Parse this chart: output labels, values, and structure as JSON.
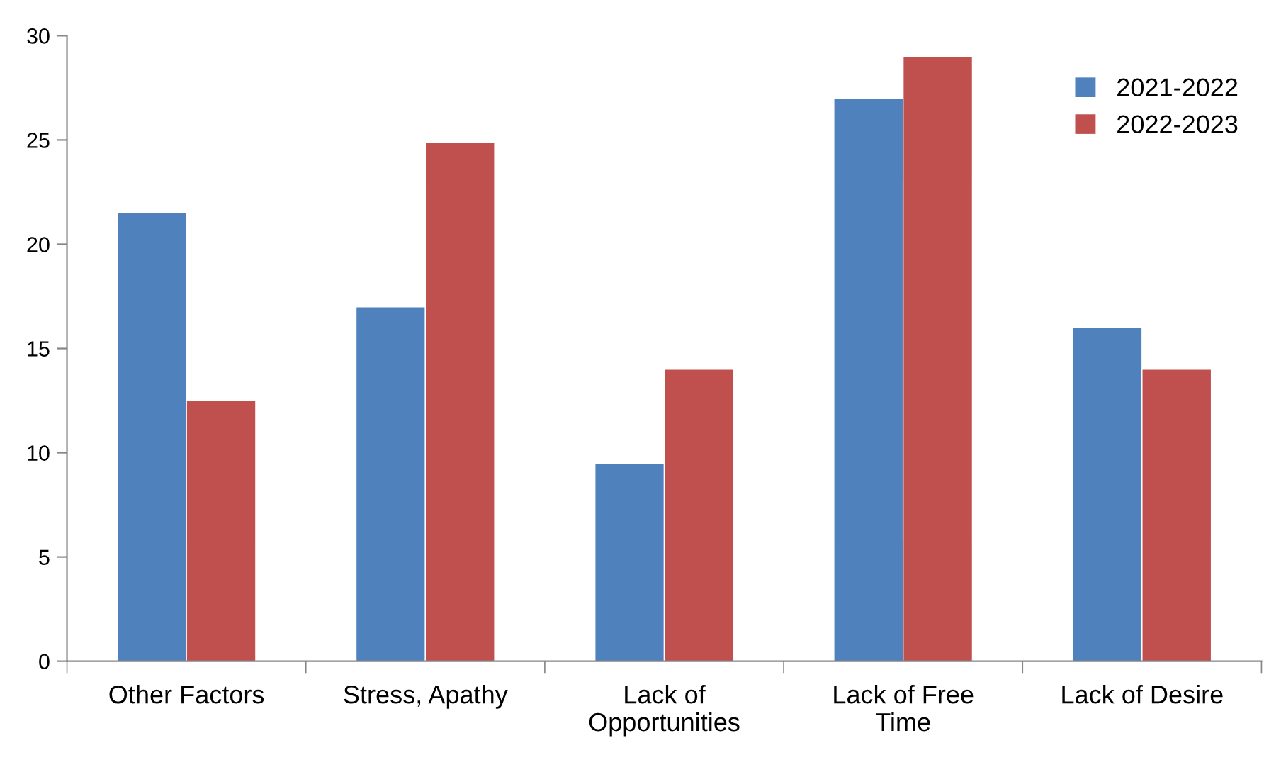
{
  "chart_data": {
    "type": "bar",
    "categories": [
      "Other Factors",
      "Stress, Apathy",
      "Lack of Opportunities",
      "Lack of Free Time",
      "Lack of Desire"
    ],
    "series": [
      {
        "name": "2021-2022",
        "color": "#4f81bd",
        "values": [
          21.5,
          17,
          9.5,
          27,
          16
        ]
      },
      {
        "name": "2022-2023",
        "color": "#c0504d",
        "values": [
          12.5,
          24.9,
          14,
          29,
          14
        ]
      }
    ],
    "ylim": [
      0,
      30
    ],
    "yticks": [
      0,
      5,
      10,
      15,
      20,
      25,
      30
    ],
    "grid": false,
    "legend": "top right"
  }
}
